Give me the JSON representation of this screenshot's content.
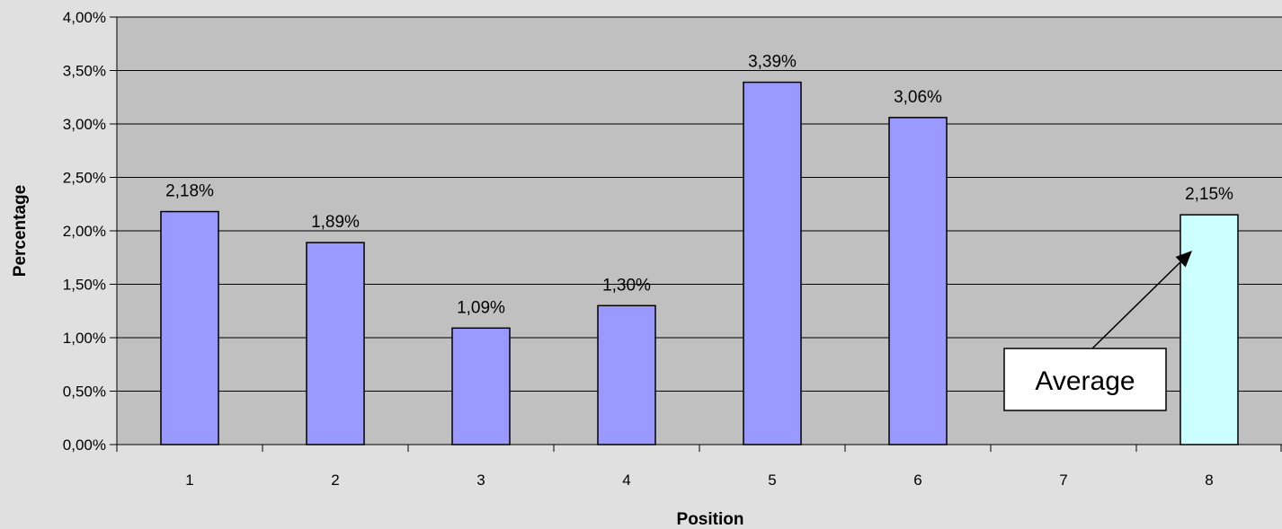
{
  "chart_data": {
    "type": "bar",
    "categories": [
      "1",
      "2",
      "3",
      "4",
      "5",
      "6",
      "7",
      "8"
    ],
    "values": [
      2.18,
      1.89,
      1.09,
      1.3,
      3.39,
      3.06,
      null,
      2.15
    ],
    "data_labels": [
      "2,18%",
      "1,89%",
      "1,09%",
      "1,30%",
      "3,39%",
      "3,06%",
      "",
      "2,15%"
    ],
    "highlight_index": 7,
    "xlabel": "Position",
    "ylabel": "Percentage",
    "ylim": [
      0,
      4
    ],
    "y_ticks": [
      0,
      0.5,
      1,
      1.5,
      2,
      2.5,
      3,
      3.5,
      4
    ],
    "y_tick_labels": [
      "0,00%",
      "0,50%",
      "1,00%",
      "1,50%",
      "2,00%",
      "2,50%",
      "3,00%",
      "3,50%",
      "4,00%"
    ],
    "grid": true,
    "annotation": {
      "text": "Average",
      "points_to_category": "8"
    },
    "colors": {
      "bar": "#9999ff",
      "highlight_bar": "#ccffff",
      "plot_background": "#c0c0c0",
      "page_background": "#e0e0e0",
      "gridline": "#000000"
    }
  }
}
